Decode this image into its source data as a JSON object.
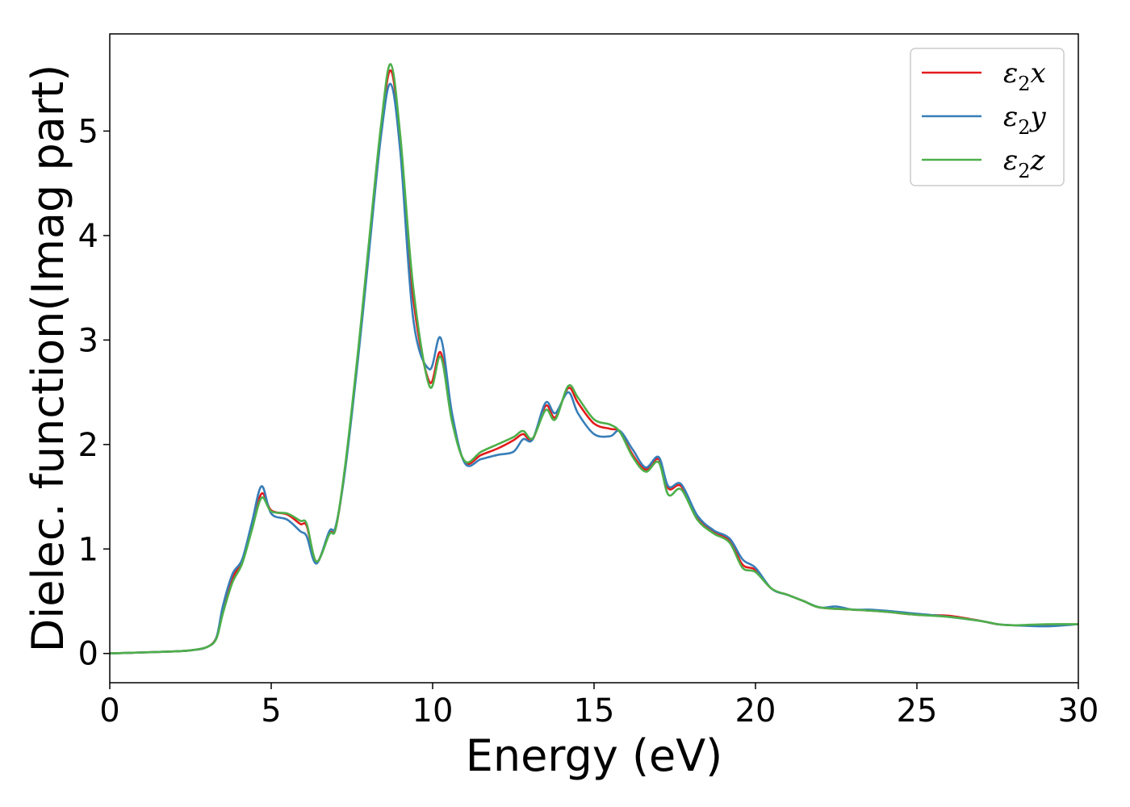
{
  "chart_data": {
    "type": "line",
    "title": "",
    "xlabel": "Energy (eV)",
    "ylabel": "Dielec. function(Imag part)",
    "xlim": [
      0,
      30
    ],
    "ylim": [
      -0.28,
      5.93
    ],
    "xticks": [
      0,
      5,
      10,
      15,
      20,
      25,
      30
    ],
    "yticks": [
      0,
      1,
      2,
      3,
      4,
      5
    ],
    "grid": false,
    "legend_position": "top-right",
    "series": [
      {
        "name": "ε2x",
        "legend_base": "ε",
        "legend_sub": "2",
        "legend_suffix": "x",
        "color": "#e41a1c",
        "points": [
          [
            0,
            0.0
          ],
          [
            1,
            0.01
          ],
          [
            2,
            0.02
          ],
          [
            2.5,
            0.03
          ],
          [
            3,
            0.06
          ],
          [
            3.3,
            0.15
          ],
          [
            3.5,
            0.4
          ],
          [
            3.8,
            0.72
          ],
          [
            4.1,
            0.88
          ],
          [
            4.4,
            1.2
          ],
          [
            4.7,
            1.53
          ],
          [
            5.0,
            1.37
          ],
          [
            5.5,
            1.33
          ],
          [
            5.9,
            1.24
          ],
          [
            6.1,
            1.22
          ],
          [
            6.4,
            0.88
          ],
          [
            6.8,
            1.15
          ],
          [
            7.0,
            1.2
          ],
          [
            7.3,
            1.8
          ],
          [
            7.7,
            2.9
          ],
          [
            8.0,
            3.8
          ],
          [
            8.4,
            5.0
          ],
          [
            8.7,
            5.58
          ],
          [
            9.0,
            4.9
          ],
          [
            9.4,
            3.4
          ],
          [
            9.9,
            2.6
          ],
          [
            10.25,
            2.88
          ],
          [
            10.6,
            2.25
          ],
          [
            11.0,
            1.83
          ],
          [
            11.5,
            1.9
          ],
          [
            12.0,
            1.96
          ],
          [
            12.5,
            2.04
          ],
          [
            12.8,
            2.1
          ],
          [
            13.1,
            2.05
          ],
          [
            13.5,
            2.37
          ],
          [
            13.8,
            2.26
          ],
          [
            14.2,
            2.54
          ],
          [
            14.5,
            2.4
          ],
          [
            15.0,
            2.2
          ],
          [
            15.5,
            2.15
          ],
          [
            15.8,
            2.12
          ],
          [
            16.2,
            1.9
          ],
          [
            16.6,
            1.76
          ],
          [
            17.0,
            1.86
          ],
          [
            17.3,
            1.58
          ],
          [
            17.7,
            1.6
          ],
          [
            18.2,
            1.3
          ],
          [
            18.7,
            1.16
          ],
          [
            19.2,
            1.08
          ],
          [
            19.6,
            0.85
          ],
          [
            20.0,
            0.8
          ],
          [
            20.5,
            0.62
          ],
          [
            21.0,
            0.56
          ],
          [
            21.5,
            0.5
          ],
          [
            22.0,
            0.44
          ],
          [
            23.0,
            0.42
          ],
          [
            24.0,
            0.4
          ],
          [
            25.0,
            0.37
          ],
          [
            26.0,
            0.36
          ],
          [
            27.0,
            0.31
          ],
          [
            27.5,
            0.28
          ],
          [
            28.0,
            0.27
          ],
          [
            29.0,
            0.27
          ],
          [
            30.0,
            0.28
          ]
        ]
      },
      {
        "name": "ε2y",
        "legend_base": "ε",
        "legend_sub": "2",
        "legend_suffix": "y",
        "color": "#377eb8",
        "points": [
          [
            0,
            0.0
          ],
          [
            1,
            0.01
          ],
          [
            2,
            0.02
          ],
          [
            2.5,
            0.03
          ],
          [
            3,
            0.06
          ],
          [
            3.3,
            0.15
          ],
          [
            3.5,
            0.45
          ],
          [
            3.8,
            0.76
          ],
          [
            4.1,
            0.9
          ],
          [
            4.4,
            1.25
          ],
          [
            4.7,
            1.6
          ],
          [
            5.0,
            1.34
          ],
          [
            5.5,
            1.28
          ],
          [
            5.9,
            1.17
          ],
          [
            6.1,
            1.12
          ],
          [
            6.4,
            0.86
          ],
          [
            6.8,
            1.17
          ],
          [
            7.0,
            1.22
          ],
          [
            7.3,
            1.78
          ],
          [
            7.7,
            2.85
          ],
          [
            8.0,
            3.75
          ],
          [
            8.4,
            4.95
          ],
          [
            8.7,
            5.45
          ],
          [
            9.0,
            4.8
          ],
          [
            9.4,
            3.2
          ],
          [
            9.9,
            2.72
          ],
          [
            10.25,
            3.02
          ],
          [
            10.6,
            2.3
          ],
          [
            11.0,
            1.82
          ],
          [
            11.5,
            1.86
          ],
          [
            12.0,
            1.9
          ],
          [
            12.5,
            1.93
          ],
          [
            12.8,
            2.05
          ],
          [
            13.1,
            2.05
          ],
          [
            13.5,
            2.4
          ],
          [
            13.8,
            2.3
          ],
          [
            14.2,
            2.5
          ],
          [
            14.5,
            2.3
          ],
          [
            15.0,
            2.1
          ],
          [
            15.5,
            2.08
          ],
          [
            15.8,
            2.13
          ],
          [
            16.2,
            1.95
          ],
          [
            16.6,
            1.78
          ],
          [
            17.0,
            1.88
          ],
          [
            17.3,
            1.6
          ],
          [
            17.7,
            1.62
          ],
          [
            18.2,
            1.32
          ],
          [
            18.7,
            1.18
          ],
          [
            19.2,
            1.1
          ],
          [
            19.6,
            0.9
          ],
          [
            20.0,
            0.82
          ],
          [
            20.5,
            0.62
          ],
          [
            21.0,
            0.56
          ],
          [
            21.5,
            0.5
          ],
          [
            22.0,
            0.44
          ],
          [
            22.5,
            0.45
          ],
          [
            23.0,
            0.42
          ],
          [
            23.5,
            0.42
          ],
          [
            24.0,
            0.41
          ],
          [
            25.0,
            0.38
          ],
          [
            26.0,
            0.35
          ],
          [
            27.0,
            0.31
          ],
          [
            27.5,
            0.28
          ],
          [
            28.0,
            0.27
          ],
          [
            29.0,
            0.26
          ],
          [
            30.0,
            0.28
          ]
        ]
      },
      {
        "name": "ε2z",
        "legend_base": "ε",
        "legend_sub": "2",
        "legend_suffix": "z",
        "color": "#4daf4a",
        "points": [
          [
            0,
            0.0
          ],
          [
            1,
            0.01
          ],
          [
            2,
            0.02
          ],
          [
            2.5,
            0.03
          ],
          [
            3,
            0.06
          ],
          [
            3.3,
            0.14
          ],
          [
            3.5,
            0.38
          ],
          [
            3.8,
            0.68
          ],
          [
            4.1,
            0.86
          ],
          [
            4.4,
            1.18
          ],
          [
            4.7,
            1.49
          ],
          [
            5.0,
            1.36
          ],
          [
            5.5,
            1.34
          ],
          [
            5.9,
            1.27
          ],
          [
            6.1,
            1.24
          ],
          [
            6.4,
            0.88
          ],
          [
            6.8,
            1.14
          ],
          [
            7.0,
            1.2
          ],
          [
            7.3,
            1.82
          ],
          [
            7.7,
            2.92
          ],
          [
            8.0,
            3.85
          ],
          [
            8.4,
            5.05
          ],
          [
            8.7,
            5.64
          ],
          [
            9.0,
            4.95
          ],
          [
            9.4,
            3.5
          ],
          [
            9.9,
            2.56
          ],
          [
            10.25,
            2.84
          ],
          [
            10.6,
            2.22
          ],
          [
            11.0,
            1.84
          ],
          [
            11.5,
            1.93
          ],
          [
            12.0,
            2.0
          ],
          [
            12.5,
            2.07
          ],
          [
            12.8,
            2.13
          ],
          [
            13.1,
            2.06
          ],
          [
            13.5,
            2.33
          ],
          [
            13.8,
            2.24
          ],
          [
            14.2,
            2.56
          ],
          [
            14.5,
            2.45
          ],
          [
            15.0,
            2.24
          ],
          [
            15.5,
            2.19
          ],
          [
            15.8,
            2.12
          ],
          [
            16.2,
            1.88
          ],
          [
            16.6,
            1.74
          ],
          [
            17.0,
            1.83
          ],
          [
            17.3,
            1.52
          ],
          [
            17.7,
            1.57
          ],
          [
            18.2,
            1.28
          ],
          [
            18.7,
            1.15
          ],
          [
            19.2,
            1.06
          ],
          [
            19.6,
            0.82
          ],
          [
            20.0,
            0.78
          ],
          [
            20.5,
            0.62
          ],
          [
            21.0,
            0.56
          ],
          [
            21.5,
            0.5
          ],
          [
            22.0,
            0.44
          ],
          [
            23.0,
            0.42
          ],
          [
            24.0,
            0.4
          ],
          [
            25.0,
            0.37
          ],
          [
            26.0,
            0.35
          ],
          [
            27.0,
            0.31
          ],
          [
            27.5,
            0.28
          ],
          [
            28.0,
            0.27
          ],
          [
            29.0,
            0.28
          ],
          [
            30.0,
            0.28
          ]
        ]
      }
    ]
  }
}
